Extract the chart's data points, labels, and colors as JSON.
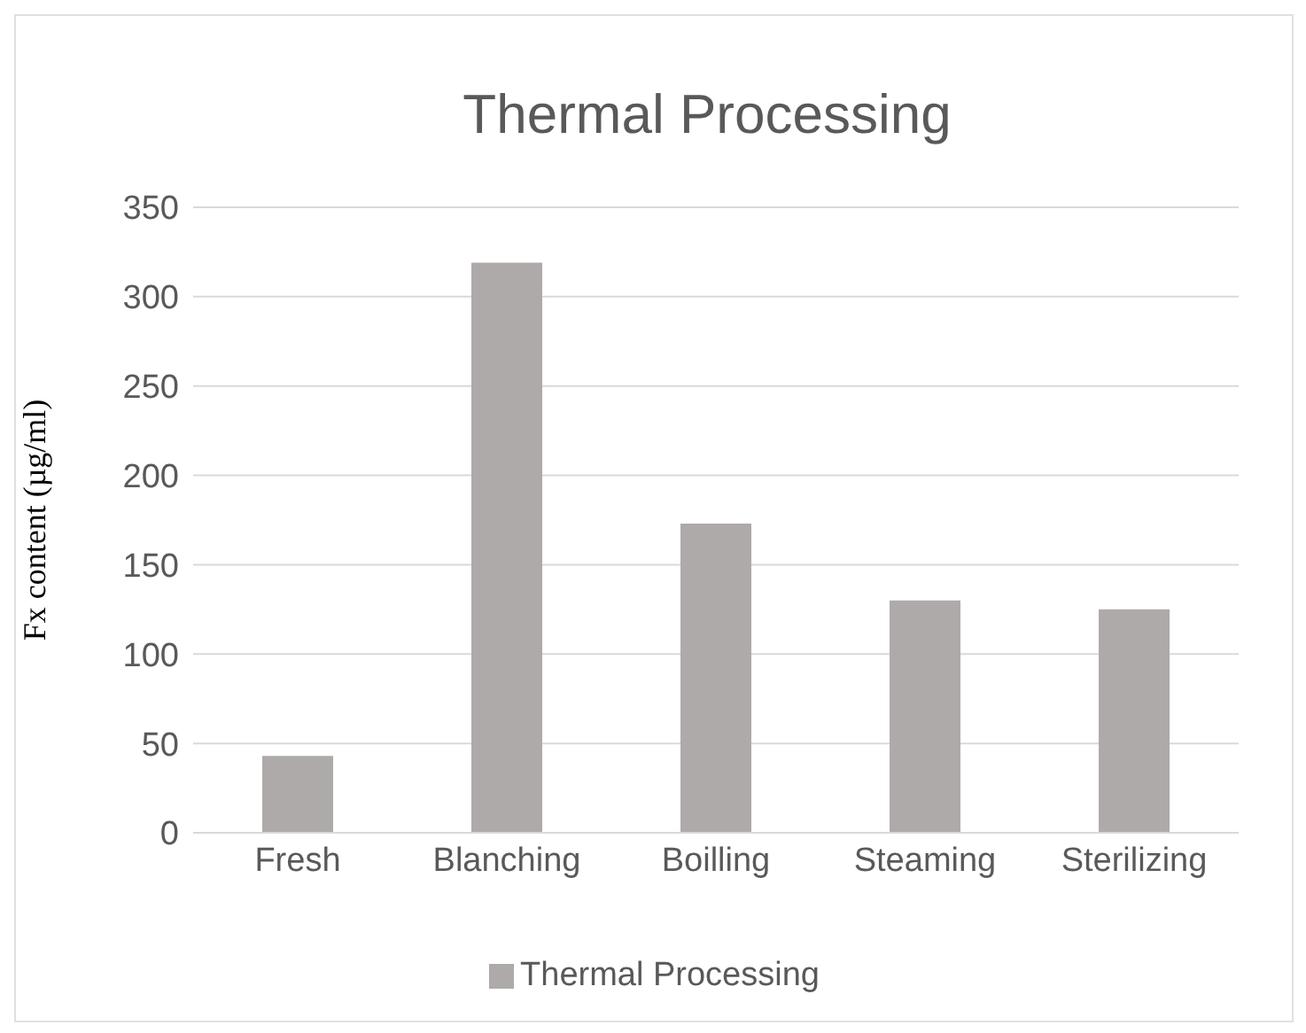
{
  "chart_data": {
    "type": "bar",
    "title": "Thermal Processing",
    "ylabel": "Fx content (µg/ml)",
    "categories": [
      "Fresh",
      "Blanching",
      "Boilling",
      "Steaming",
      "Sterilizing"
    ],
    "series": [
      {
        "name": "Thermal Processing",
        "color": "#aeaaaa",
        "values": [
          43,
          319,
          173,
          130,
          125
        ]
      }
    ],
    "ylim": [
      0,
      350
    ],
    "yticks": [
      0,
      50,
      100,
      150,
      200,
      250,
      300,
      350
    ],
    "grid": "y",
    "legend": "bottom"
  }
}
